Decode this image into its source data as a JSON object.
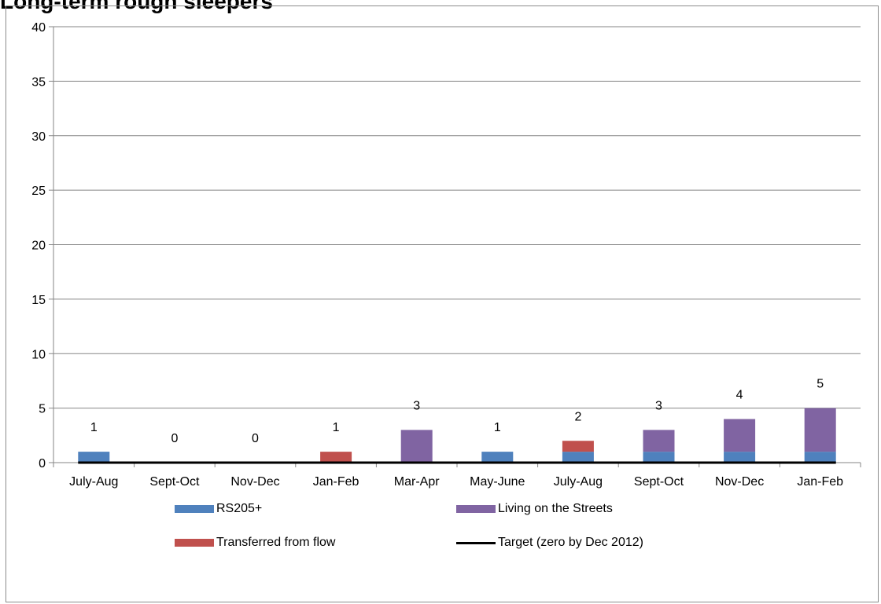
{
  "title": "Long-term rough sleepers",
  "chart_data": {
    "type": "bar",
    "stacked": true,
    "categories": [
      "July-Aug",
      "Sept-Oct",
      "Nov-Dec",
      "Jan-Feb",
      "Mar-Apr",
      "May-June",
      "July-Aug",
      "Sept-Oct",
      "Nov-Dec",
      "Jan-Feb"
    ],
    "series": [
      {
        "name": "RS205+",
        "color": "#4f81bd",
        "values": [
          1,
          0,
          0,
          0,
          0,
          1,
          1,
          1,
          1,
          1
        ]
      },
      {
        "name": "Transferred from flow",
        "color": "#c0504d",
        "values": [
          0,
          0,
          0,
          1,
          0,
          0,
          1,
          0,
          0,
          0
        ]
      },
      {
        "name": "Living on the Streets",
        "color": "#8064a2",
        "values": [
          0,
          0,
          0,
          0,
          3,
          0,
          0,
          2,
          3,
          4
        ]
      }
    ],
    "totals": [
      "1",
      "0",
      "0",
      "1",
      "3",
      "1",
      "2",
      "3",
      "4",
      "5"
    ],
    "target_line": {
      "name": "Target (zero by Dec 2012)",
      "color": "#000000",
      "values": [
        0,
        0,
        0,
        0,
        0,
        0,
        0,
        0,
        0,
        0
      ]
    },
    "yticks": [
      "0",
      "5",
      "10",
      "15",
      "20",
      "25",
      "30",
      "35",
      "40"
    ],
    "ylim": [
      0,
      40
    ],
    "grid": true,
    "legend_position": "bottom",
    "legend": [
      {
        "label": "RS205+",
        "kind": "swatch",
        "color": "#4f81bd"
      },
      {
        "label": "Living on the Streets",
        "kind": "swatch",
        "color": "#8064a2"
      },
      {
        "label": "Transferred from flow",
        "kind": "swatch",
        "color": "#c0504d"
      },
      {
        "label": "Target (zero by Dec 2012)",
        "kind": "line",
        "color": "#000000"
      }
    ]
  }
}
